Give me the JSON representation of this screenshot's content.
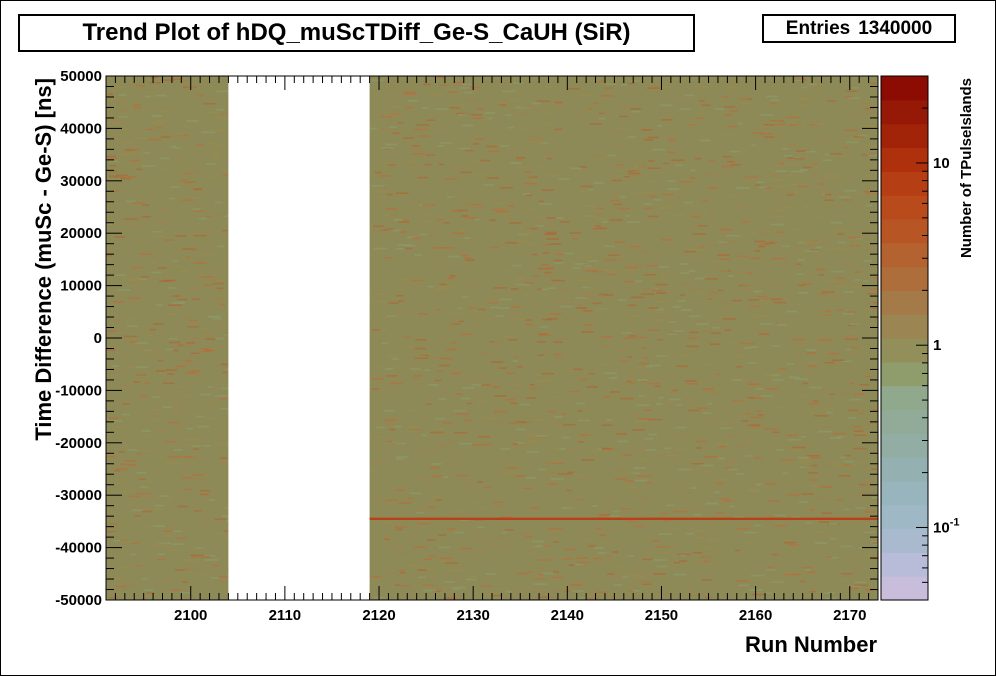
{
  "chart_data": {
    "type": "heatmap",
    "title": "Trend Plot of hDQ_muScTDiff_Ge-S_CaUH (SiR)",
    "stats": {
      "label": "Entries",
      "value": "1340000"
    },
    "xlabel": "Run Number",
    "ylabel": "Time Difference (muSc - Ge-S) [ns]",
    "zlabel": "Number of TPulseIslands",
    "xlim": [
      2091,
      2173
    ],
    "ylim": [
      -50000,
      50000
    ],
    "x_ticks": [
      2100,
      2110,
      2120,
      2130,
      2140,
      2150,
      2160,
      2170
    ],
    "x_tick_labels": [
      "2100",
      "2110",
      "2120",
      "2130",
      "2140",
      "2150",
      "2160",
      "2170"
    ],
    "y_ticks": [
      50000,
      40000,
      30000,
      20000,
      10000,
      0,
      -10000,
      -20000,
      -30000,
      -40000,
      -50000
    ],
    "y_tick_labels": [
      "50000",
      "40000",
      "30000",
      "20000",
      "10000",
      "0",
      "-10000",
      "-20000",
      "-30000",
      "-40000",
      "-50000"
    ],
    "z_scale": "log",
    "zlim": [
      0.04,
      30
    ],
    "z_ticks": [
      0.1,
      1,
      10
    ],
    "z_tick_labels": [
      "10^-1",
      "1",
      "10"
    ],
    "empty_runs": [
      2104,
      2119
    ],
    "typical_bin_content": 1,
    "peak_band": {
      "y": -34500,
      "content": 5
    },
    "colorbar_colors": [
      "#c8bedc",
      "#b8bcd8",
      "#a9bacf",
      "#9fb8c6",
      "#98b4bc",
      "#94b0b0",
      "#92ada4",
      "#91ab98",
      "#90a88c",
      "#8f9d6d",
      "#928f5a",
      "#9b8552",
      "#a47a48",
      "#ad6e3c",
      "#b46230",
      "#b85524",
      "#b94a1c",
      "#b63e14",
      "#ae300c",
      "#a22408",
      "#961806",
      "#8c0c04"
    ]
  }
}
